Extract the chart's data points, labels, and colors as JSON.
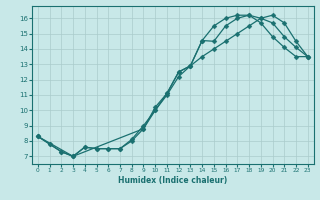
{
  "color": "#1a7070",
  "bg_color": "#c8e8e8",
  "grid_color": "#aacccc",
  "xlabel": "Humidex (Indice chaleur)",
  "xlim": [
    -0.5,
    23.5
  ],
  "ylim": [
    6.5,
    16.8
  ],
  "xticks": [
    0,
    1,
    2,
    3,
    4,
    5,
    6,
    7,
    8,
    9,
    10,
    11,
    12,
    13,
    14,
    15,
    16,
    17,
    18,
    19,
    20,
    21,
    22,
    23
  ],
  "yticks": [
    7,
    8,
    9,
    10,
    11,
    12,
    13,
    14,
    15,
    16
  ],
  "lineA_x": [
    0,
    1,
    2,
    3,
    4,
    5,
    6,
    7,
    8,
    9,
    10,
    11,
    12,
    13,
    14,
    15,
    16,
    17,
    18,
    19,
    20,
    21,
    22,
    23
  ],
  "lineA_y": [
    8.3,
    7.8,
    7.3,
    7.0,
    7.6,
    7.5,
    7.5,
    7.5,
    8.0,
    8.8,
    10.2,
    11.1,
    12.5,
    12.9,
    14.55,
    15.5,
    16.0,
    16.2,
    16.2,
    15.7,
    14.8,
    14.1,
    13.5,
    13.5
  ],
  "lineB_x": [
    0,
    1,
    2,
    3,
    4,
    5,
    6,
    7,
    8,
    9,
    10,
    11,
    12,
    13,
    14,
    15,
    16,
    17,
    18,
    19,
    20,
    21,
    22,
    23
  ],
  "lineB_y": [
    8.3,
    7.8,
    7.3,
    7.0,
    7.6,
    7.5,
    7.5,
    7.5,
    8.1,
    9.0,
    10.0,
    11.1,
    12.5,
    12.9,
    14.55,
    14.5,
    15.5,
    16.0,
    16.2,
    16.0,
    15.7,
    14.8,
    14.1,
    13.5
  ],
  "lineC_x": [
    0,
    3,
    9,
    10,
    11,
    12,
    13,
    14,
    15,
    16,
    17,
    18,
    19,
    20,
    21,
    22,
    23
  ],
  "lineC_y": [
    8.3,
    7.0,
    8.8,
    10.0,
    11.0,
    12.2,
    12.9,
    13.5,
    14.0,
    14.5,
    15.0,
    15.5,
    16.0,
    16.2,
    15.7,
    14.5,
    13.5
  ]
}
